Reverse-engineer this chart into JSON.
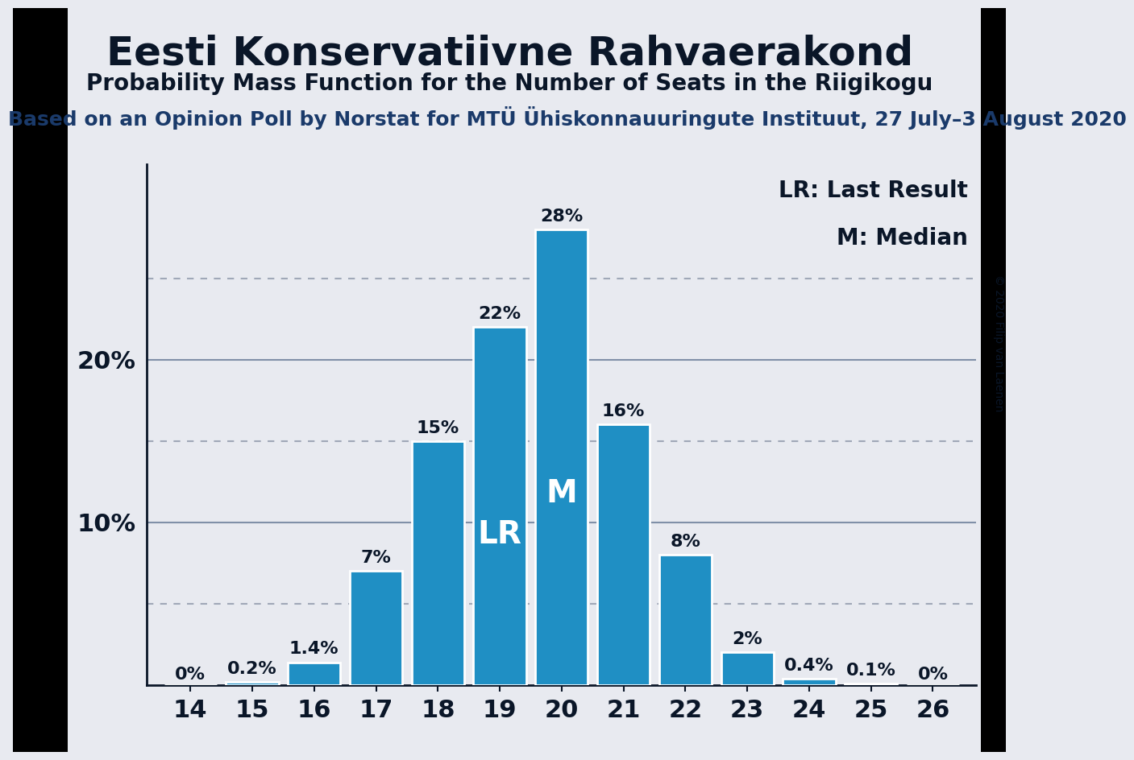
{
  "title": "Eesti Konservatiivne Rahvaerakond",
  "subtitle": "Probability Mass Function for the Number of Seats in the Riigikogu",
  "source_line": "Based on an Opinion Poll by Norstat for MTÜ Ühiskonnauuringute Instituut, 27 July–3 August 2020",
  "copyright": "© 2020 Filip van Laenen",
  "seats": [
    14,
    15,
    16,
    17,
    18,
    19,
    20,
    21,
    22,
    23,
    24,
    25,
    26
  ],
  "probabilities": [
    0.0,
    0.2,
    1.4,
    7.0,
    15.0,
    22.0,
    28.0,
    16.0,
    8.0,
    2.0,
    0.4,
    0.1,
    0.0
  ],
  "bar_labels": [
    "0%",
    "0.2%",
    "1.4%",
    "7%",
    "15%",
    "22%",
    "28%",
    "16%",
    "8%",
    "2%",
    "0.4%",
    "0.1%",
    "0%"
  ],
  "bar_color": "#1f8fc4",
  "last_result_seat": 19,
  "median_seat": 20,
  "lr_label": "LR",
  "median_label": "M",
  "legend_lr": "LR: Last Result",
  "legend_m": "M: Median",
  "background_color": "#e8eaf0",
  "black_border_color": "#0a0a0a",
  "title_color": "#0a1628",
  "grid_solid_color": "#8090a8",
  "grid_dotted_color": "#a0a8b8",
  "source_color": "#1a3a6a",
  "title_fontsize": 36,
  "subtitle_fontsize": 20,
  "source_fontsize": 18,
  "bar_label_fontsize": 16,
  "axis_fontsize": 22,
  "legend_fontsize": 20,
  "lr_median_label_fontsize": 28,
  "copyright_fontsize": 10,
  "solid_lines": [
    10,
    20
  ],
  "dotted_lines": [
    5,
    15,
    25
  ],
  "ytick_show": [
    10,
    20
  ],
  "ylim_max": 32
}
